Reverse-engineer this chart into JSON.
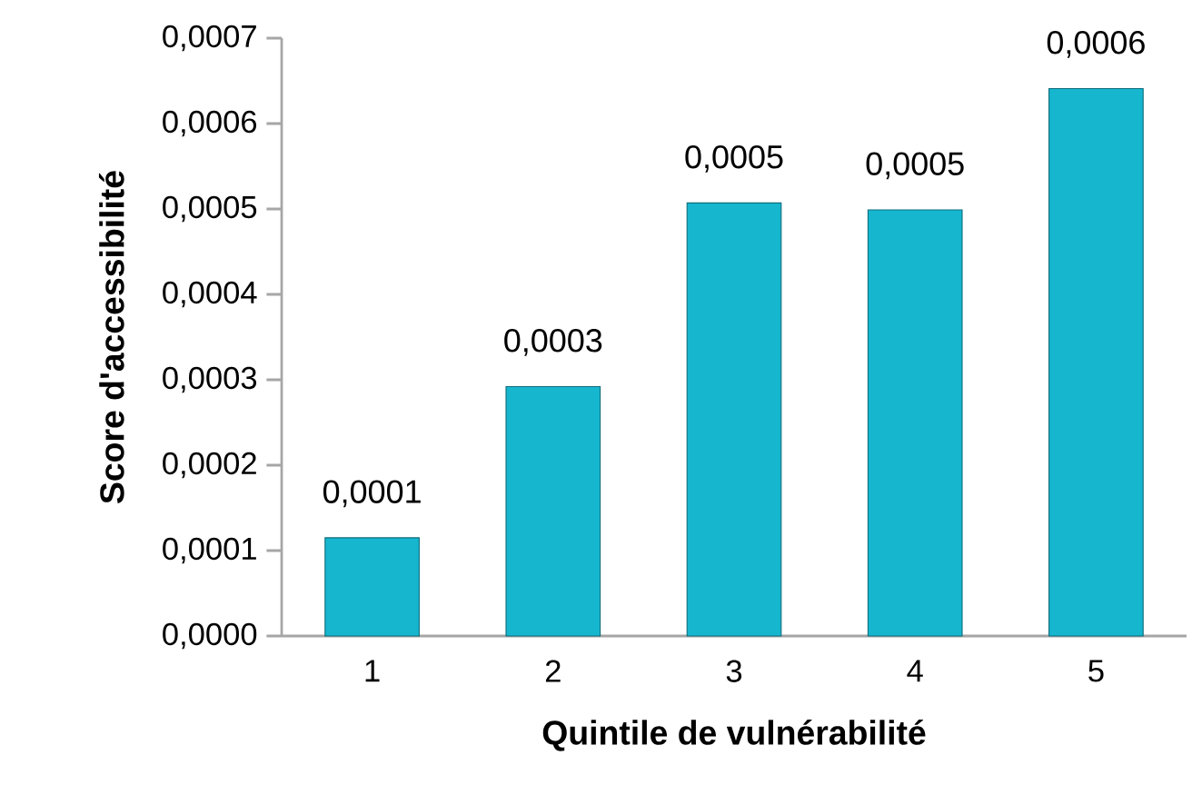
{
  "chart_data": {
    "type": "bar",
    "xlabel": "Quintile de vulnérabilité",
    "ylabel": "Score d'accessibilité",
    "categories": [
      "1",
      "2",
      "3",
      "4",
      "5"
    ],
    "values": [
      0.000115,
      0.000292,
      0.000507,
      0.000499,
      0.000641
    ],
    "value_labels": [
      "0,0001",
      "0,0003",
      "0,0005",
      "0,0005",
      "0,0006"
    ],
    "color": "#17b6cf",
    "ylim": [
      0,
      0.0007
    ],
    "yticks": [
      {
        "value": 0,
        "label": "0,0000"
      },
      {
        "value": 0.0001,
        "label": "0,0001"
      },
      {
        "value": 0.0002,
        "label": "0,0002"
      },
      {
        "value": 0.0003,
        "label": "0,0003"
      },
      {
        "value": 0.0004,
        "label": "0,0004"
      },
      {
        "value": 0.0005,
        "label": "0,0005"
      },
      {
        "value": 0.0006,
        "label": "0,0006"
      },
      {
        "value": 0.0007,
        "label": "0,0007"
      }
    ],
    "grid": false
  }
}
